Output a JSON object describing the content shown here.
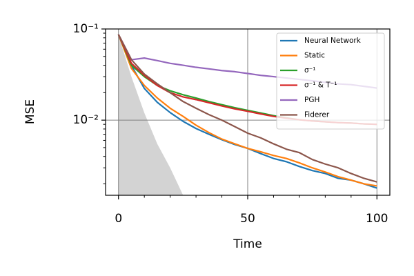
{
  "chart_data": {
    "type": "line",
    "x": [
      0,
      5,
      10,
      15,
      20,
      25,
      30,
      35,
      40,
      45,
      50,
      55,
      60,
      65,
      70,
      75,
      80,
      85,
      90,
      95,
      100
    ],
    "series": [
      {
        "name": "Neural Network",
        "color": "#1f77b4",
        "values": [
          0.087,
          0.0397,
          0.0223,
          0.0157,
          0.0121,
          0.0097,
          0.0081,
          0.007,
          0.0061,
          0.0054,
          0.0049,
          0.0043,
          0.0038,
          0.0035,
          0.0031,
          0.0028,
          0.0026,
          0.0023,
          0.0022,
          0.002,
          0.0018
        ]
      },
      {
        "name": "Static",
        "color": "#ff7f0e",
        "values": [
          0.087,
          0.037,
          0.024,
          0.0175,
          0.0135,
          0.011,
          0.0088,
          0.0073,
          0.0062,
          0.0055,
          0.0049,
          0.0045,
          0.0041,
          0.0038,
          0.0034,
          0.003,
          0.0027,
          0.0024,
          0.0022,
          0.002,
          0.0019
        ]
      },
      {
        "name": "σ⁻¹",
        "color": "#2ca02c",
        "values": [
          0.087,
          0.04,
          0.03,
          0.024,
          0.021,
          0.019,
          0.0175,
          0.016,
          0.0148,
          0.0137,
          0.0128,
          0.012,
          0.0112,
          0.0106,
          0.0101,
          0.0098,
          0.0096,
          0.0094,
          0.0093,
          0.0091,
          0.009
        ]
      },
      {
        "name": "σ⁻¹ & T⁻¹",
        "color": "#d62728",
        "values": [
          0.087,
          0.042,
          0.031,
          0.024,
          0.02,
          0.018,
          0.0168,
          0.0155,
          0.0143,
          0.0133,
          0.0125,
          0.0117,
          0.011,
          0.0105,
          0.0101,
          0.0098,
          0.0096,
          0.0094,
          0.0093,
          0.0091,
          0.009
        ]
      },
      {
        "name": "PGH",
        "color": "#9467bd",
        "values": [
          0.087,
          0.046,
          0.048,
          0.045,
          0.042,
          0.04,
          0.038,
          0.0365,
          0.035,
          0.034,
          0.0325,
          0.031,
          0.03,
          0.029,
          0.028,
          0.027,
          0.026,
          0.025,
          0.0245,
          0.0235,
          0.0225
        ]
      },
      {
        "name": "Fiderer",
        "color": "#8c564b",
        "values": [
          0.087,
          0.046,
          0.032,
          0.025,
          0.02,
          0.016,
          0.0135,
          0.0115,
          0.01,
          0.0085,
          0.0072,
          0.0064,
          0.0055,
          0.0048,
          0.0044,
          0.0037,
          0.0033,
          0.003,
          0.0026,
          0.0023,
          0.0021
        ]
      }
    ],
    "fill_area": {
      "x": [
        0,
        5,
        10,
        15,
        20,
        25
      ],
      "values": [
        0.085,
        0.03,
        0.012,
        0.0055,
        0.003,
        0.0015
      ],
      "color": "#d3d3d3"
    },
    "x_label": "Time",
    "y_label": "MSE",
    "xlim": [
      -5,
      105
    ],
    "xticks": [
      0,
      50,
      100
    ],
    "xminor_ticks": [
      10,
      20,
      30,
      40,
      60,
      70,
      80,
      90
    ],
    "ylim": [
      0.0015,
      0.1
    ],
    "log_y": true,
    "yticks": [
      {
        "value": 0.01,
        "label": "10⁻²"
      },
      {
        "value": 0.1,
        "label": "10⁻¹"
      }
    ],
    "yminor_ticks": [
      0.002,
      0.003,
      0.004,
      0.005,
      0.006,
      0.007,
      0.008,
      0.009,
      0.02,
      0.03,
      0.04,
      0.05,
      0.06,
      0.07,
      0.08,
      0.09
    ],
    "grid": true,
    "legend": "upper right"
  }
}
